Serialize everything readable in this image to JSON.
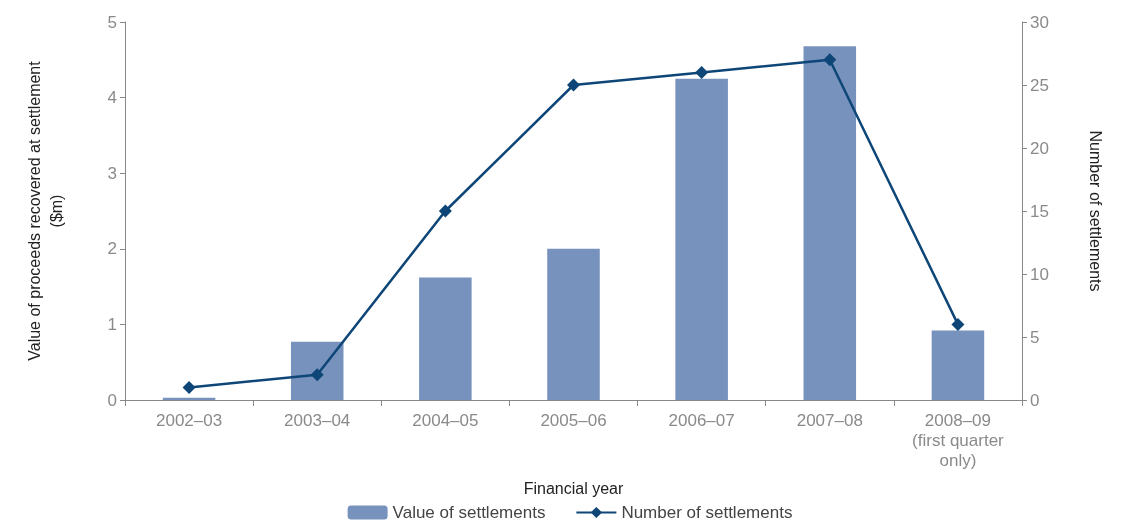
{
  "chart_data": {
    "type": "bar",
    "xlabel": "Financial year",
    "ylabel": "Value of proceeds recovered at settlement\n($m)",
    "y2label": "Number of settlements",
    "categories": [
      "2002–03",
      "2003–04",
      "2004–05",
      "2005–06",
      "2006–07",
      "2007–08",
      "2008–09\n(first quarter\nonly)"
    ],
    "series": [
      {
        "name": "Value of settlements",
        "color": "#7792bc",
        "values": [
          0.03,
          0.77,
          1.62,
          2.0,
          4.25,
          4.68,
          0.92
        ]
      },
      {
        "name": "Number of settlements",
        "type": "line",
        "axis": "y2",
        "color": "#0d4677",
        "marker": "diamond",
        "values": [
          1,
          2,
          15,
          25,
          26,
          27,
          6
        ]
      }
    ],
    "ylim": [
      0,
      5
    ],
    "yticks": [
      0,
      1,
      2,
      3,
      4,
      5
    ],
    "y2lim": [
      0,
      30
    ],
    "y2ticks": [
      0,
      5,
      10,
      15,
      20,
      25,
      30
    ],
    "grid": false,
    "legend": "bottom"
  }
}
